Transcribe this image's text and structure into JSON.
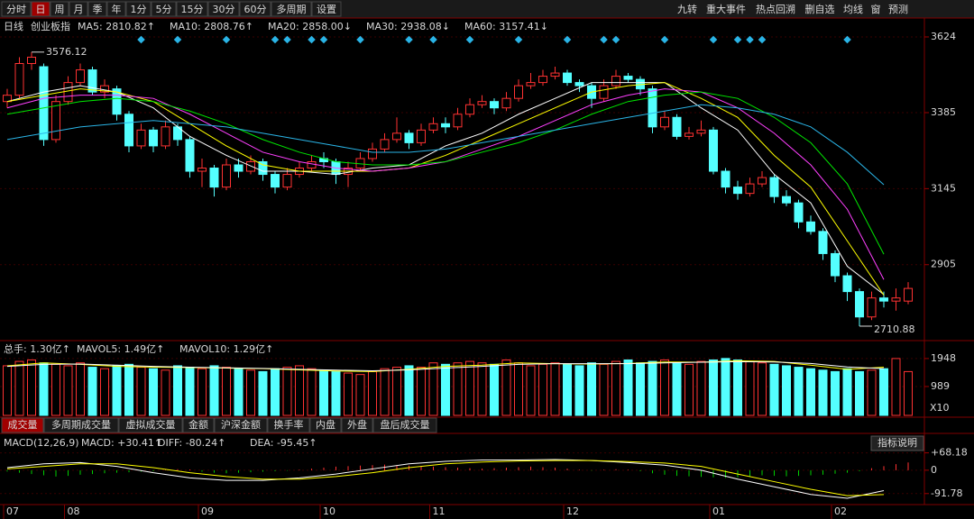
{
  "toolbar": {
    "left": [
      "分时",
      "日",
      "周",
      "月",
      "季",
      "年",
      "1分",
      "5分",
      "15分",
      "30分",
      "60分",
      "多周期",
      "设置"
    ],
    "right": [
      "九转",
      "重大事件",
      "热点回溯",
      "删自选",
      "均线",
      "窗",
      "预测"
    ]
  },
  "chart_data": [
    {
      "type": "candlestick",
      "title": "日线",
      "name": "创业板指",
      "up_color": "#ff3232",
      "down_color": "#54ffff",
      "ylim": [
        2671,
        3678
      ],
      "yticks": [
        2905,
        3145,
        3385,
        3624
      ],
      "x_ticks": [
        {
          "value": 0,
          "label": "07"
        },
        {
          "value": 5,
          "label": "08"
        },
        {
          "value": 16,
          "label": "09"
        },
        {
          "value": 26,
          "label": "10"
        },
        {
          "value": 35,
          "label": "11"
        },
        {
          "value": 46,
          "label": "12"
        },
        {
          "value": 58,
          "label": "01"
        },
        {
          "value": 68,
          "label": "02"
        }
      ],
      "open": [
        3420,
        3440,
        3540,
        3530,
        3300,
        3420,
        3480,
        3520,
        3450,
        3460,
        3380,
        3280,
        3330,
        3280,
        3340,
        3300,
        3200,
        3210,
        3150,
        3220,
        3200,
        3230,
        3190,
        3150,
        3190,
        3210,
        3240,
        3230,
        3190,
        3210,
        3240,
        3270,
        3300,
        3320,
        3290,
        3330,
        3350,
        3340,
        3380,
        3410,
        3420,
        3400,
        3430,
        3470,
        3480,
        3500,
        3510,
        3480,
        3470,
        3430,
        3470,
        3500,
        3490,
        3460,
        3340,
        3370,
        3310,
        3320,
        3330,
        3200,
        3150,
        3130,
        3160,
        3180,
        3120,
        3100,
        3040,
        3010,
        2940,
        2870,
        2820,
        2740,
        2800,
        2790,
        2790
      ],
      "high": [
        3460,
        3560,
        3576.12,
        3540,
        3440,
        3500,
        3540,
        3530,
        3490,
        3470,
        3390,
        3350,
        3340,
        3360,
        3350,
        3310,
        3240,
        3220,
        3240,
        3240,
        3250,
        3240,
        3200,
        3210,
        3230,
        3250,
        3260,
        3240,
        3230,
        3260,
        3290,
        3320,
        3370,
        3330,
        3350,
        3370,
        3370,
        3400,
        3430,
        3440,
        3430,
        3450,
        3490,
        3510,
        3520,
        3530,
        3520,
        3490,
        3480,
        3490,
        3520,
        3510,
        3500,
        3470,
        3390,
        3380,
        3340,
        3360,
        3340,
        3210,
        3170,
        3180,
        3200,
        3190,
        3140,
        3110,
        3060,
        3020,
        2950,
        2880,
        2830,
        2820,
        2820,
        2830,
        2850
      ],
      "low": [
        3400,
        3430,
        3520,
        3280,
        3290,
        3410,
        3470,
        3440,
        3430,
        3360,
        3260,
        3270,
        3260,
        3270,
        3280,
        3180,
        3150,
        3120,
        3140,
        3180,
        3190,
        3170,
        3130,
        3140,
        3180,
        3200,
        3210,
        3160,
        3150,
        3200,
        3230,
        3260,
        3290,
        3270,
        3280,
        3320,
        3320,
        3330,
        3370,
        3400,
        3380,
        3390,
        3420,
        3460,
        3470,
        3490,
        3470,
        3450,
        3400,
        3420,
        3460,
        3480,
        3440,
        3320,
        3330,
        3300,
        3300,
        3310,
        3190,
        3130,
        3110,
        3120,
        3150,
        3100,
        3090,
        3020,
        3000,
        2920,
        2850,
        2790,
        2710.88,
        2730,
        2770,
        2760,
        2780
      ],
      "close": [
        3440,
        3540,
        3560,
        3300,
        3420,
        3480,
        3520,
        3450,
        3470,
        3380,
        3280,
        3330,
        3280,
        3340,
        3300,
        3200,
        3210,
        3150,
        3220,
        3200,
        3230,
        3190,
        3150,
        3190,
        3210,
        3230,
        3230,
        3190,
        3210,
        3240,
        3270,
        3300,
        3320,
        3290,
        3330,
        3350,
        3340,
        3380,
        3410,
        3420,
        3400,
        3430,
        3470,
        3480,
        3500,
        3510,
        3480,
        3470,
        3430,
        3470,
        3500,
        3490,
        3460,
        3340,
        3370,
        3310,
        3320,
        3330,
        3200,
        3150,
        3130,
        3160,
        3180,
        3120,
        3100,
        3040,
        3010,
        2940,
        2870,
        2820,
        2740,
        2800,
        2790,
        2800,
        2830
      ],
      "annotations": [
        {
          "index": 2,
          "value": 3576.12
        },
        {
          "index": 70,
          "value": 2710.88
        }
      ],
      "signals": {
        "color": "#2ab4e6",
        "indices": [
          11,
          14,
          18,
          22,
          23,
          25,
          26,
          29,
          33,
          35,
          38,
          42,
          46,
          49,
          50,
          54,
          58,
          60,
          61,
          62,
          69
        ]
      },
      "ma_index": [
        0,
        3,
        6,
        9,
        12,
        15,
        18,
        21,
        24,
        27,
        30,
        33,
        36,
        39,
        42,
        45,
        48,
        51,
        54,
        57,
        60,
        63,
        66,
        69,
        72
      ],
      "series": [
        {
          "name": "MA5",
          "legend_label": "MA5: 2810.82↑",
          "color": "#ffffff",
          "values": [
            3420,
            3450,
            3470,
            3450,
            3400,
            3310,
            3250,
            3200,
            3200,
            3190,
            3210,
            3220,
            3280,
            3320,
            3380,
            3430,
            3480,
            3480,
            3480,
            3400,
            3330,
            3190,
            3100,
            2900,
            2810.82
          ]
        },
        {
          "name": "MA10",
          "legend_label": "MA10: 2808.76↑",
          "color": "#ffff00",
          "values": [
            3420,
            3440,
            3460,
            3450,
            3420,
            3350,
            3280,
            3220,
            3200,
            3200,
            3200,
            3210,
            3250,
            3300,
            3350,
            3400,
            3450,
            3470,
            3480,
            3430,
            3370,
            3250,
            3150,
            2980,
            2808.76
          ]
        },
        {
          "name": "MA20",
          "legend_label": "MA20: 2858.00↓",
          "color": "#ff40ff",
          "values": [
            3400,
            3430,
            3440,
            3440,
            3430,
            3380,
            3320,
            3260,
            3230,
            3210,
            3200,
            3210,
            3230,
            3270,
            3310,
            3360,
            3410,
            3440,
            3460,
            3450,
            3400,
            3320,
            3220,
            3080,
            2858.0
          ]
        },
        {
          "name": "MA30",
          "legend_label": "MA30: 2938.08↓",
          "color": "#00e600",
          "values": [
            3380,
            3400,
            3420,
            3430,
            3420,
            3390,
            3350,
            3300,
            3260,
            3230,
            3220,
            3220,
            3230,
            3260,
            3290,
            3330,
            3380,
            3420,
            3440,
            3450,
            3430,
            3370,
            3290,
            3160,
            2938.08
          ]
        },
        {
          "name": "MA60",
          "legend_label": "MA60: 3157.41↓",
          "color": "#2ab4e6",
          "values": [
            3300,
            3320,
            3340,
            3350,
            3360,
            3350,
            3340,
            3320,
            3300,
            3280,
            3260,
            3260,
            3270,
            3290,
            3310,
            3330,
            3350,
            3370,
            3390,
            3410,
            3400,
            3380,
            3340,
            3260,
            3157.41
          ]
        }
      ]
    },
    {
      "type": "bar",
      "title": "总手: 1.30亿↑",
      "unit": "X10",
      "ylim": [
        0,
        2470
      ],
      "yticks": [
        989,
        1948
      ],
      "values": [
        1700,
        1850,
        1900,
        1800,
        1750,
        1700,
        1800,
        1650,
        1600,
        1700,
        1750,
        1650,
        1600,
        1550,
        1700,
        1650,
        1600,
        1700,
        1650,
        1600,
        1550,
        1500,
        1600,
        1650,
        1700,
        1600,
        1550,
        1500,
        1450,
        1400,
        1500,
        1600,
        1650,
        1700,
        1650,
        1800,
        1750,
        1800,
        1850,
        1800,
        1750,
        1900,
        1800,
        1700,
        1750,
        1800,
        1750,
        1700,
        1800,
        1750,
        1850,
        1900,
        1800,
        1850,
        1900,
        1800,
        1750,
        1850,
        1900,
        1950,
        1900,
        1850,
        1800,
        1750,
        1700,
        1650,
        1600,
        1550,
        1500,
        1600,
        1500,
        1550,
        1600,
        1948,
        1500
      ],
      "ma_index": [
        0,
        3,
        6,
        9,
        12,
        15,
        18,
        21,
        24,
        27,
        30,
        33,
        36,
        39,
        42,
        45,
        48,
        51,
        54,
        57,
        60,
        63,
        66,
        69,
        72
      ],
      "series": [
        {
          "name": "MAVOL5",
          "legend_label": "MAVOL5: 1.49亿↑",
          "color": "#ffff00",
          "values": [
            1700,
            1800,
            1750,
            1680,
            1650,
            1640,
            1620,
            1600,
            1560,
            1520,
            1500,
            1580,
            1680,
            1720,
            1800,
            1770,
            1760,
            1780,
            1830,
            1820,
            1870,
            1850,
            1720,
            1580,
            1650
          ]
        },
        {
          "name": "MAVOL10",
          "legend_label": "MAVOL10: 1.29亿↑",
          "color": "#ffffff",
          "values": [
            1680,
            1750,
            1760,
            1720,
            1680,
            1650,
            1630,
            1610,
            1580,
            1550,
            1530,
            1560,
            1620,
            1680,
            1750,
            1770,
            1770,
            1770,
            1800,
            1820,
            1840,
            1830,
            1780,
            1660,
            1600
          ]
        }
      ],
      "tabs": [
        "成交量",
        "多周期成交量",
        "虚拟成交量",
        "金额",
        "沪深金额",
        "换手率",
        "内盘",
        "外盘",
        "盘后成交量"
      ]
    },
    {
      "type": "macd",
      "title": "MACD(12,26,9)",
      "hist_label": "MACD: +30.41↑",
      "button": "指标说明",
      "ylim": [
        -135,
        95
      ],
      "yticks": [
        {
          "value": 68.18,
          "label": "+68.18"
        },
        0,
        -91.78
      ],
      "histogram": [
        -5,
        -10,
        -15,
        -20,
        -25,
        -22,
        -18,
        -15,
        -12,
        -10,
        -8,
        -6,
        -4,
        2,
        4,
        3,
        -6,
        -10,
        -12,
        -10,
        -8,
        -6,
        -4,
        -2,
        2,
        6,
        10,
        14,
        16,
        18,
        20,
        22,
        20,
        18,
        16,
        14,
        12,
        10,
        8,
        6,
        8,
        10,
        12,
        14,
        12,
        10,
        6,
        2,
        -2,
        2,
        4,
        2,
        -4,
        -12,
        -18,
        -22,
        -24,
        -26,
        -28,
        -30,
        -28,
        -24,
        -20,
        -22,
        -24,
        -22,
        -20,
        -18,
        -14,
        -10,
        -4,
        8,
        16,
        24,
        30.41
      ],
      "ma_index": [
        0,
        3,
        6,
        9,
        12,
        15,
        18,
        21,
        24,
        27,
        30,
        33,
        36,
        39,
        42,
        45,
        48,
        51,
        54,
        57,
        60,
        63,
        66,
        69,
        72
      ],
      "series": [
        {
          "name": "DIFF",
          "legend_label": "DIFF: -80.24↑",
          "color": "#ffffff",
          "values": [
            10,
            25,
            30,
            15,
            -10,
            -30,
            -40,
            -40,
            -30,
            -15,
            5,
            25,
            35,
            40,
            40,
            42,
            38,
            30,
            20,
            0,
            -35,
            -65,
            -95,
            -110,
            -80.24
          ]
        },
        {
          "name": "DEA",
          "legend_label": "DEA: -95.45↑",
          "color": "#ffff00",
          "values": [
            5,
            15,
            25,
            25,
            10,
            -10,
            -25,
            -35,
            -35,
            -25,
            -10,
            10,
            25,
            32,
            36,
            38,
            38,
            34,
            28,
            15,
            -15,
            -45,
            -75,
            -100,
            -95.45
          ]
        }
      ]
    }
  ]
}
